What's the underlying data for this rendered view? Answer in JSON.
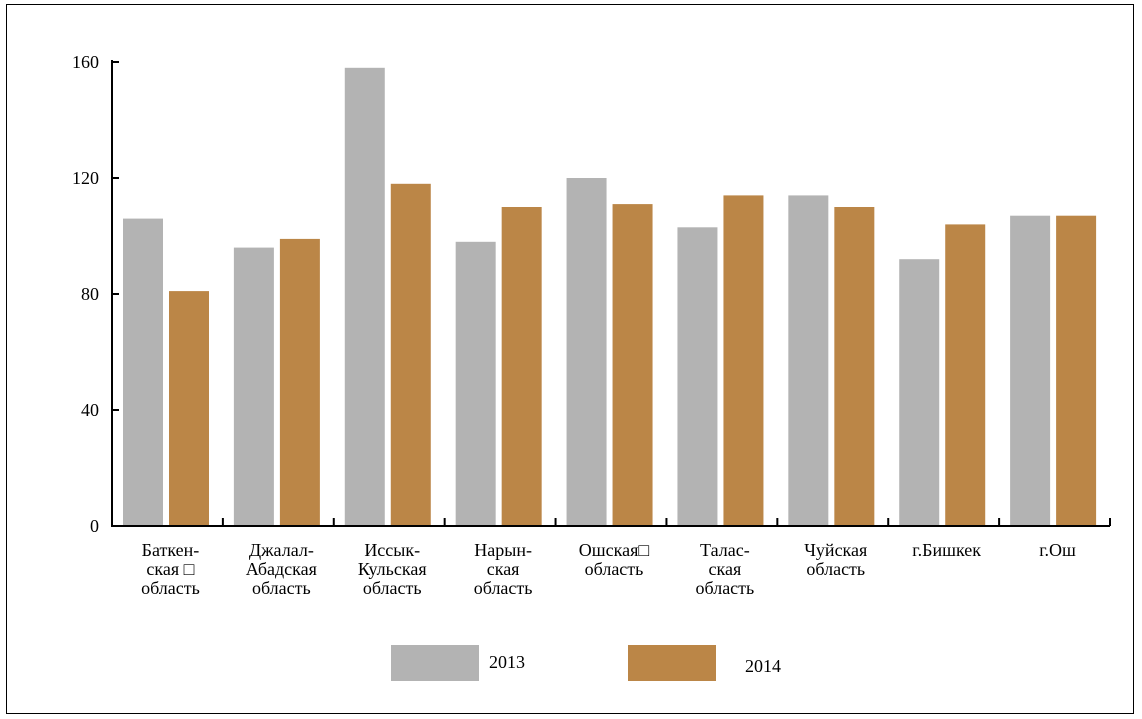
{
  "chart_data": {
    "type": "bar",
    "categories": [
      [
        "Баткен-",
        "ская □",
        "область"
      ],
      [
        "Джалал-",
        "Абадская",
        "область"
      ],
      [
        "Иссык-",
        "Кульская",
        "область"
      ],
      [
        "Нарын-",
        "ская",
        "область"
      ],
      [
        "Ошская□",
        "область"
      ],
      [
        "Талас-",
        "ская",
        "область"
      ],
      [
        "Чуйская",
        "область"
      ],
      [
        "г.Бишкек"
      ],
      [
        "г.Ош"
      ]
    ],
    "series": [
      {
        "name": "2013",
        "color": "#b3b3b3",
        "values": [
          106,
          96,
          158,
          98,
          120,
          103,
          114,
          92,
          107
        ]
      },
      {
        "name": "2014",
        "color": "#bb8647",
        "values": [
          81,
          99,
          118,
          110,
          111,
          114,
          110,
          104,
          107
        ]
      }
    ],
    "ylim": [
      0,
      160
    ],
    "yticks": [
      "0",
      "40",
      "80",
      "120",
      "160"
    ],
    "grid": false,
    "legend": "bottom-center"
  }
}
